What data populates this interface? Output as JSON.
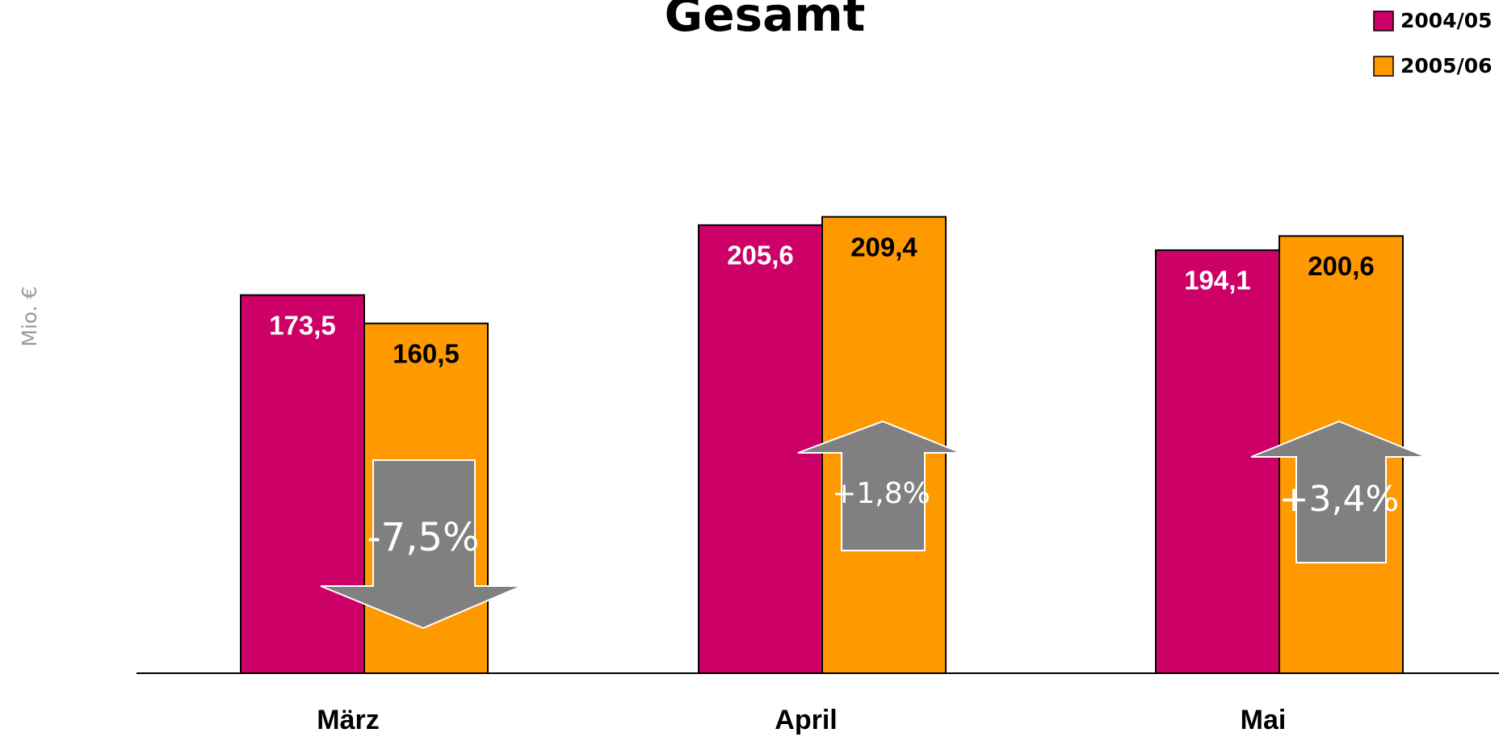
{
  "chart_data": {
    "type": "bar",
    "title": "Gesamt",
    "y_label": "Mio. €",
    "categories": [
      "März",
      "April",
      "Mai"
    ],
    "series": [
      {
        "name": "2004/05",
        "color": "#cc0066",
        "values": [
          173.5,
          205.6,
          194.1
        ],
        "value_labels": [
          "173,5",
          "205,6",
          "194,1"
        ]
      },
      {
        "name": "2005/06",
        "color": "#ff9900",
        "values": [
          160.5,
          209.4,
          200.6
        ],
        "value_labels": [
          "160,5",
          "209,4",
          "200,6"
        ]
      }
    ],
    "annotations": [
      "-7,5%",
      "+1,8%",
      "+3,4%"
    ],
    "ylim": [
      0,
      300
    ],
    "legend": "top-right"
  }
}
